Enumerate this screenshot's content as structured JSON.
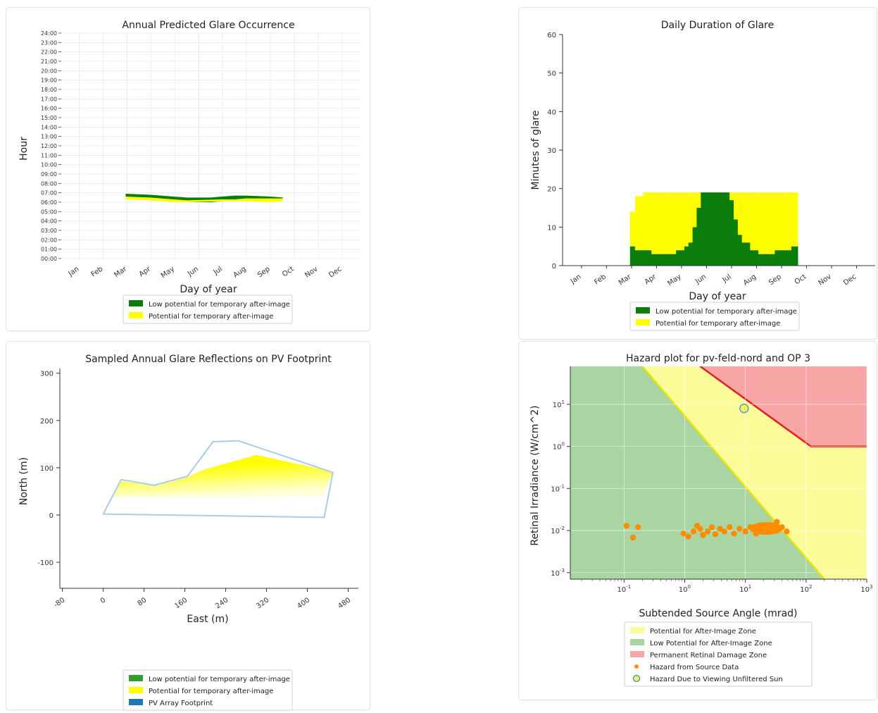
{
  "chart_data": [
    {
      "type": "area",
      "title": "Annual Predicted Glare Occurrence",
      "xlabel": "Day of year",
      "ylabel": "Hour",
      "xticks": [
        "Jan",
        "Feb",
        "Mar",
        "Apr",
        "May",
        "Jun",
        "Jul",
        "Aug",
        "Sep",
        "Oct",
        "Nov",
        "Dec"
      ],
      "yticks": [
        "00:00",
        "01:00",
        "02:00",
        "03:00",
        "04:00",
        "05:00",
        "06:00",
        "07:00",
        "08:00",
        "09:00",
        "10:00",
        "11:00",
        "12:00",
        "13:00",
        "14:00",
        "15:00",
        "16:00",
        "17:00",
        "18:00",
        "19:00",
        "20:00",
        "21:00",
        "22:00",
        "23:00",
        "24:00"
      ],
      "ylim": [
        0,
        24
      ],
      "grid": true,
      "legend_position": "bottom",
      "series": [
        {
          "name": "Low potential for temporary after-image",
          "color": "#0a7d0a",
          "x": [
            "Mar 15",
            "Apr 15",
            "May 15",
            "Jun 1",
            "Jun 15",
            "Jul 1",
            "Jul 15",
            "Aug 1",
            "Aug 15",
            "Sep 15",
            "Oct 1"
          ],
          "y_low": [
            6.5,
            6.4,
            6.2,
            6.0,
            6.0,
            6.0,
            6.1,
            6.2,
            6.3,
            6.3,
            6.3
          ],
          "y_high": [
            6.9,
            6.8,
            6.6,
            6.5,
            6.5,
            6.5,
            6.6,
            6.7,
            6.7,
            6.6,
            6.5
          ]
        },
        {
          "name": "Potential for temporary after-image",
          "color": "#ffff00",
          "x": [
            "Mar 15",
            "Apr 15",
            "May 15",
            "Jun 1",
            "Jul 15",
            "Aug 1",
            "Aug 15",
            "Sep 15",
            "Oct 1"
          ],
          "y_low": [
            6.3,
            6.2,
            6.0,
            6.0,
            6.1,
            6.1,
            6.1,
            6.0,
            6.1
          ],
          "y_high": [
            6.6,
            6.5,
            6.3,
            6.2,
            6.3,
            6.3,
            6.4,
            6.4,
            6.4
          ]
        }
      ]
    },
    {
      "type": "bar",
      "title": "Daily Duration of Glare",
      "xlabel": "Day of year",
      "ylabel": "Minutes of glare",
      "xticks": [
        "Jan",
        "Feb",
        "Mar",
        "Apr",
        "May",
        "Jun",
        "Jul",
        "Aug",
        "Sep",
        "Oct",
        "Nov",
        "Dec"
      ],
      "yticks": [
        0,
        10,
        20,
        30,
        40,
        50,
        60
      ],
      "ylim": [
        0,
        60
      ],
      "legend_position": "bottom",
      "stacked": true,
      "series": [
        {
          "name": "Low potential for temporary after-image",
          "color": "#0a7d0a",
          "x_day": [
            74,
            80,
            90,
            100,
            110,
            120,
            130,
            140,
            145,
            150,
            155,
            160,
            170,
            180,
            190,
            195,
            200,
            205,
            210,
            220,
            230,
            240,
            250,
            260,
            270
          ],
          "values": [
            5,
            4,
            4,
            3,
            3,
            3,
            4,
            5,
            6,
            10,
            15,
            19,
            19,
            19,
            19,
            17,
            12,
            8,
            6,
            4,
            3,
            3,
            4,
            4,
            5
          ]
        },
        {
          "name": "Potential for temporary after-image",
          "color": "#ffff00",
          "x_day": [
            74,
            80,
            90,
            100,
            110,
            120,
            130,
            140,
            145,
            150,
            155,
            160,
            170,
            180,
            190,
            195,
            200,
            205,
            210,
            220,
            230,
            240,
            250,
            260,
            270
          ],
          "values": [
            9,
            14,
            15,
            16,
            16,
            16,
            15,
            14,
            13,
            9,
            4,
            0,
            0,
            0,
            0,
            2,
            7,
            11,
            13,
            15,
            16,
            16,
            15,
            15,
            14
          ]
        }
      ]
    },
    {
      "type": "scatter",
      "title": "Sampled Annual Glare Reflections on PV Footprint",
      "xlabel": "East (m)",
      "ylabel": "North (m)",
      "xticks": [
        "-80",
        "0",
        "80",
        "160",
        "240",
        "320",
        "400",
        "480"
      ],
      "yticks": [
        "-100",
        "0",
        "100",
        "200",
        "300"
      ],
      "xlim": [
        -85,
        500
      ],
      "ylim": [
        -155,
        310
      ],
      "legend_position": "bottom",
      "legend": [
        {
          "name": "Low potential for temporary after-image",
          "color": "#2ca02c"
        },
        {
          "name": "Potential for temporary after-image",
          "color": "#ffff00"
        },
        {
          "name": "PV Array Footprint",
          "color": "#1f77b4"
        }
      ],
      "footprint_polygon": [
        [
          0,
          2
        ],
        [
          35,
          75
        ],
        [
          100,
          63
        ],
        [
          165,
          82
        ],
        [
          215,
          155
        ],
        [
          265,
          157
        ],
        [
          450,
          90
        ],
        [
          433,
          -5
        ],
        [
          0,
          2
        ]
      ],
      "glare_polygon": [
        [
          15,
          38
        ],
        [
          35,
          72
        ],
        [
          100,
          62
        ],
        [
          165,
          80
        ],
        [
          195,
          95
        ],
        [
          300,
          127
        ],
        [
          450,
          92
        ],
        [
          432,
          40
        ],
        [
          250,
          38
        ]
      ]
    },
    {
      "type": "area",
      "title": "Hazard plot for pv-feld-nord and OP 3",
      "xlabel": "Subtended Source Angle (mrad)",
      "ylabel": "Retinal Irradiance (W/cm^2)",
      "xscale": "log",
      "yscale": "log",
      "xlim": [
        0.013,
        1000
      ],
      "ylim": [
        0.0007,
        80
      ],
      "xticks": [
        "10^-1",
        "10^0",
        "10^1",
        "10^2",
        "10^3"
      ],
      "yticks": [
        "10^-3",
        "10^-2",
        "10^-1",
        "10^0",
        "10^1"
      ],
      "legend_position": "bottom",
      "legend": [
        {
          "name": "Potential for After-Image Zone",
          "color": "#fbfb9a"
        },
        {
          "name": "Low Potential for After-Image Zone",
          "color": "#a8d5a2"
        },
        {
          "name": "Permanent Retinal Damage Zone",
          "color": "#f7a5a5"
        },
        {
          "name": "Hazard from Source Data",
          "color": "#ff8c00"
        },
        {
          "name": "Hazard Due to Viewing Unfiltered Sun",
          "color": "#f2f25a"
        }
      ],
      "boundary_line": [
        [
          0.2,
          80
        ],
        [
          200,
          0.0007
        ]
      ],
      "damage_boundary": [
        [
          1.8,
          80
        ],
        [
          120,
          1.0
        ],
        [
          1000,
          1.0
        ]
      ],
      "hazard_points": [
        [
          0.11,
          0.013
        ],
        [
          0.14,
          0.0068
        ],
        [
          0.17,
          0.012
        ],
        [
          0.95,
          0.0085
        ],
        [
          1.15,
          0.0072
        ],
        [
          1.4,
          0.0095
        ],
        [
          1.6,
          0.013
        ],
        [
          1.8,
          0.011
        ],
        [
          2.0,
          0.0078
        ],
        [
          2.4,
          0.0095
        ],
        [
          2.8,
          0.012
        ],
        [
          3.2,
          0.0082
        ],
        [
          3.8,
          0.011
        ],
        [
          4.5,
          0.0095
        ],
        [
          5.5,
          0.012
        ],
        [
          6.5,
          0.0085
        ],
        [
          8,
          0.011
        ],
        [
          10,
          0.0095
        ],
        [
          12,
          0.012
        ],
        [
          15,
          0.0085
        ],
        [
          18,
          0.011
        ],
        [
          22,
          0.0095
        ],
        [
          27,
          0.013
        ],
        [
          33,
          0.016
        ],
        [
          40,
          0.012
        ],
        [
          48,
          0.0095
        ]
      ],
      "sun_point": [
        9.5,
        8
      ]
    }
  ]
}
